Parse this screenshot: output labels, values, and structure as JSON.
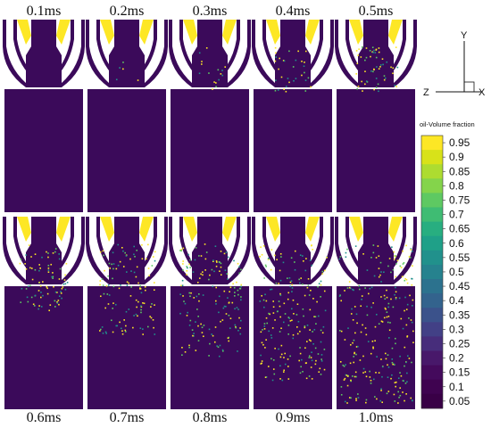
{
  "frames": [
    {
      "time": "0.1ms",
      "spray": 0
    },
    {
      "time": "0.2ms",
      "spray": 1
    },
    {
      "time": "0.3ms",
      "spray": 2
    },
    {
      "time": "0.4ms",
      "spray": 3
    },
    {
      "time": "0.5ms",
      "spray": 4
    },
    {
      "time": "0.6ms",
      "spray": 5
    },
    {
      "time": "0.7ms",
      "spray": 6
    },
    {
      "time": "0.8ms",
      "spray": 7
    },
    {
      "time": "0.9ms",
      "spray": 8
    },
    {
      "time": "1.0ms",
      "spray": 9
    }
  ],
  "legend": {
    "title": "oil-Volume fraction",
    "ticks": [
      "0.95",
      "0.9",
      "0.85",
      "0.8",
      "0.75",
      "0.7",
      "0.65",
      "0.6",
      "0.55",
      "0.5",
      "0.45",
      "0.4",
      "0.35",
      "0.3",
      "0.25",
      "0.2",
      "0.15",
      "0.1",
      "0.05"
    ],
    "colors": [
      "#fde725",
      "#d8e219",
      "#addc30",
      "#84d44b",
      "#5ec962",
      "#3fbc73",
      "#28ae80",
      "#1fa088",
      "#21918c",
      "#26828e",
      "#2c728e",
      "#33638d",
      "#3b528b",
      "#424086",
      "#472d7b",
      "#48186a",
      "#440a5c",
      "#3f0350",
      "#390046"
    ]
  },
  "axes": {
    "y": "Y",
    "z": "Z",
    "x": "X"
  },
  "colors": {
    "background": "#3b0a5a",
    "fuel": "#fde725",
    "white": "#ffffff"
  }
}
